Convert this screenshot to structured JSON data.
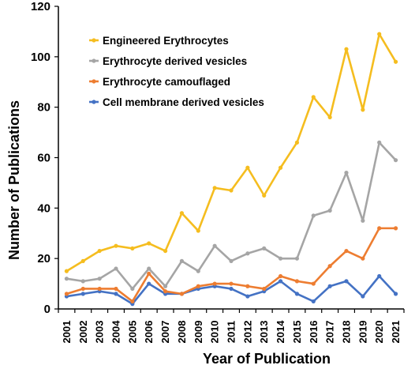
{
  "chart_data": {
    "type": "line",
    "title": "",
    "xlabel": "Year of Publication",
    "ylabel": "Number of Publications",
    "ylim": [
      0,
      120
    ],
    "yticks": [
      "0",
      "20",
      "40",
      "60",
      "80",
      "100",
      "120"
    ],
    "grid": false,
    "legend_position": "top-left",
    "categories": [
      "2001",
      "2002",
      "2003",
      "2004",
      "2005",
      "2006",
      "2007",
      "2008",
      "2009",
      "2010",
      "2011",
      "2012",
      "2013",
      "2014",
      "2015",
      "2016",
      "2017",
      "2018",
      "2019",
      "2020",
      "2021"
    ],
    "series": [
      {
        "name": "Engineered Erythrocytes",
        "color": "#F5BD1F",
        "values": [
          15,
          19,
          23,
          25,
          24,
          26,
          23,
          38,
          31,
          48,
          47,
          56,
          45,
          56,
          66,
          84,
          76,
          103,
          79,
          109,
          98
        ]
      },
      {
        "name": "Erythrocyte derived vesicles",
        "color": "#A5A5A5",
        "values": [
          12,
          11,
          12,
          16,
          8,
          16,
          9,
          19,
          15,
          25,
          19,
          22,
          24,
          20,
          20,
          37,
          39,
          54,
          35,
          66,
          59
        ]
      },
      {
        "name": "Erythrocyte camouflaged",
        "color": "#ED7D31",
        "values": [
          6,
          8,
          8,
          8,
          3,
          14,
          7,
          6,
          9,
          10,
          10,
          9,
          8,
          13,
          11,
          10,
          17,
          23,
          20,
          32,
          32
        ]
      },
      {
        "name": "Cell membrane derived vesicles",
        "color": "#4472C4",
        "values": [
          5,
          6,
          7,
          6,
          2,
          10,
          6,
          6,
          8,
          9,
          8,
          5,
          7,
          11,
          6,
          3,
          9,
          11,
          5,
          13,
          6
        ]
      }
    ]
  }
}
